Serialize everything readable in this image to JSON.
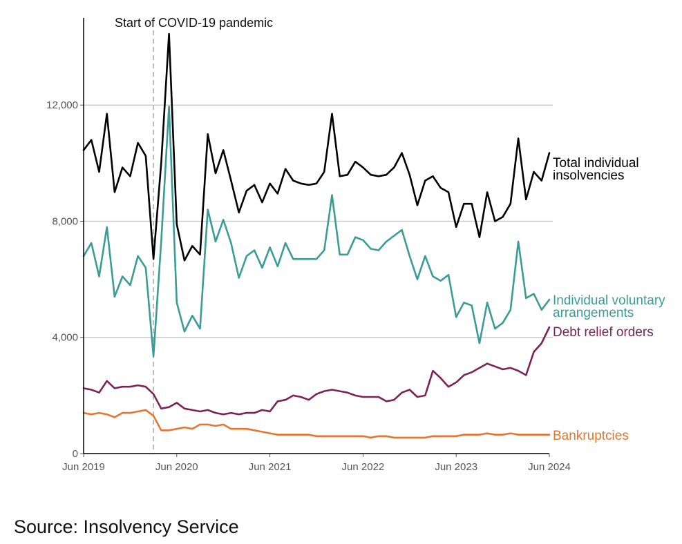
{
  "chart_data": {
    "type": "line",
    "title": "",
    "xlabel": "",
    "ylabel": "",
    "ylim": [
      0,
      15000
    ],
    "yticks": [
      0,
      4000,
      8000,
      12000
    ],
    "ytick_labels": [
      "0",
      "4,000",
      "8,000",
      "12,000"
    ],
    "xticks": [
      {
        "month_index": 0,
        "label": "Jun 2019"
      },
      {
        "month_index": 12,
        "label": "Jun 2020"
      },
      {
        "month_index": 24,
        "label": "Jun 2021"
      },
      {
        "month_index": 36,
        "label": "Jun 2022"
      },
      {
        "month_index": 48,
        "label": "Jun 2023"
      },
      {
        "month_index": 60,
        "label": "Jun 2024"
      }
    ],
    "x_start": "Jun 2019",
    "x_unit": "month",
    "annotation": {
      "month_index": 9,
      "label": "Start of COVID-19 pandemic"
    },
    "series": [
      {
        "name": "Total individual insolvencies",
        "label_lines": [
          "Total individual",
          "insolvencies"
        ],
        "color": "#000000",
        "values": [
          10450,
          10800,
          9700,
          11700,
          9000,
          9850,
          9550,
          10700,
          10250,
          6700,
          10000,
          14450,
          7900,
          6650,
          7150,
          6850,
          11000,
          9650,
          10450,
          9400,
          8300,
          9050,
          9250,
          8650,
          9300,
          8950,
          9800,
          9400,
          9300,
          9250,
          9300,
          9700,
          11700,
          9550,
          9600,
          10050,
          9850,
          9600,
          9550,
          9600,
          9850,
          10350,
          9600,
          8550,
          9400,
          9550,
          9150,
          9000,
          7800,
          8600,
          8600,
          7450,
          9000,
          8000,
          8150,
          8600,
          10850,
          8750,
          9700,
          9400,
          10350
        ]
      },
      {
        "name": "Individual voluntary arrangements",
        "label_lines": [
          "Individual voluntary",
          "arrangements"
        ],
        "color": "#3a9c97",
        "values": [
          6800,
          7250,
          6100,
          7800,
          5400,
          6100,
          5800,
          6800,
          6400,
          3350,
          7300,
          11950,
          5200,
          4200,
          4750,
          4300,
          8400,
          7300,
          8050,
          7250,
          6050,
          6800,
          7000,
          6400,
          7100,
          6450,
          7250,
          6700,
          6700,
          6700,
          6700,
          7000,
          8900,
          6850,
          6850,
          7450,
          7350,
          7050,
          7000,
          7300,
          7500,
          7700,
          6800,
          6000,
          6800,
          6100,
          5950,
          6150,
          4700,
          5200,
          5100,
          3800,
          5200,
          4300,
          4500,
          4950,
          7300,
          5350,
          5500,
          4950,
          5300
        ]
      },
      {
        "name": "Debt relief orders",
        "label_lines": [
          "Debt relief orders"
        ],
        "color": "#7b2257",
        "values": [
          2250,
          2200,
          2100,
          2500,
          2250,
          2300,
          2300,
          2350,
          2300,
          2050,
          1550,
          1600,
          1750,
          1550,
          1500,
          1450,
          1500,
          1400,
          1350,
          1400,
          1350,
          1400,
          1400,
          1500,
          1450,
          1800,
          1850,
          2000,
          1950,
          1850,
          2050,
          2150,
          2200,
          2150,
          2100,
          2000,
          1950,
          1950,
          1950,
          1800,
          1850,
          2100,
          2200,
          1950,
          2000,
          2850,
          2600,
          2300,
          2450,
          2700,
          2800,
          2950,
          3100,
          3000,
          2900,
          2950,
          2850,
          2700,
          3500,
          3800,
          4350
        ]
      },
      {
        "name": "Bankruptcies",
        "label_lines": [
          "Bankruptcies"
        ],
        "color": "#e8752f",
        "values": [
          1400,
          1350,
          1400,
          1350,
          1250,
          1400,
          1400,
          1450,
          1500,
          1300,
          800,
          800,
          850,
          900,
          850,
          1000,
          1000,
          950,
          1000,
          850,
          850,
          850,
          800,
          750,
          700,
          650,
          650,
          650,
          650,
          650,
          600,
          600,
          600,
          600,
          600,
          600,
          600,
          550,
          600,
          600,
          550,
          550,
          550,
          550,
          550,
          600,
          600,
          600,
          600,
          650,
          650,
          650,
          700,
          650,
          650,
          700,
          650,
          650,
          650,
          650,
          650
        ]
      }
    ]
  },
  "source": "Source: Insolvency Service"
}
